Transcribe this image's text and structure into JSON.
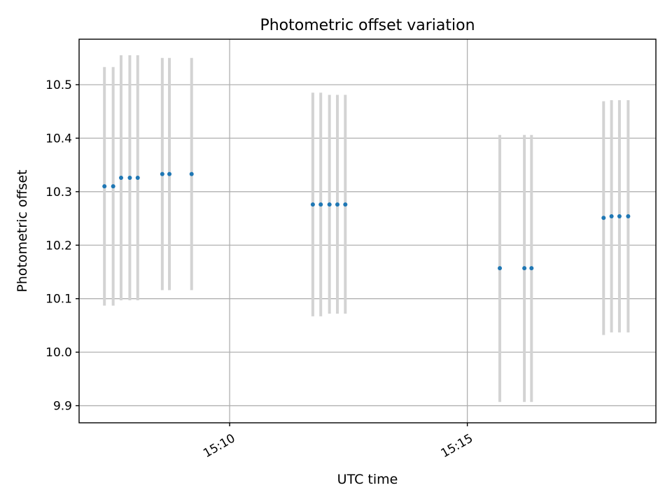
{
  "chart_data": {
    "type": "scatter",
    "title": "Photometric offset variation",
    "xlabel": "UTC time",
    "ylabel": "Photometric offset",
    "xaxis_type": "time",
    "xlim": [
      "15:06:50",
      "15:18:58"
    ],
    "ylim": [
      9.868,
      10.585
    ],
    "yticks": [
      9.9,
      10.0,
      10.1,
      10.2,
      10.3,
      10.4,
      10.5
    ],
    "ytick_labels": [
      "9.9",
      "10.0",
      "10.1",
      "10.2",
      "10.3",
      "10.4",
      "10.5"
    ],
    "xticks": [
      "15:10",
      "15:15"
    ],
    "xtick_labels": [
      "15:10",
      "15:15"
    ],
    "grid": true,
    "series": [
      {
        "color": "#1f77b4",
        "errorbar_color": "#d3d3d3",
        "points": [
          {
            "t": "15:07:22",
            "y": 10.31,
            "ylo": 10.087,
            "yhi": 10.533
          },
          {
            "t": "15:07:33",
            "y": 10.31,
            "ylo": 10.087,
            "yhi": 10.533
          },
          {
            "t": "15:07:43",
            "y": 10.326,
            "ylo": 10.097,
            "yhi": 10.555
          },
          {
            "t": "15:07:54",
            "y": 10.326,
            "ylo": 10.097,
            "yhi": 10.555
          },
          {
            "t": "15:08:04",
            "y": 10.326,
            "ylo": 10.097,
            "yhi": 10.555
          },
          {
            "t": "15:08:35",
            "y": 10.333,
            "ylo": 10.116,
            "yhi": 10.55
          },
          {
            "t": "15:08:44",
            "y": 10.333,
            "ylo": 10.116,
            "yhi": 10.55
          },
          {
            "t": "15:09:12",
            "y": 10.333,
            "ylo": 10.116,
            "yhi": 10.55
          },
          {
            "t": "15:11:45",
            "y": 10.276,
            "ylo": 10.067,
            "yhi": 10.485
          },
          {
            "t": "15:11:55",
            "y": 10.276,
            "ylo": 10.067,
            "yhi": 10.485
          },
          {
            "t": "15:12:06",
            "y": 10.276,
            "ylo": 10.072,
            "yhi": 10.481
          },
          {
            "t": "15:12:16",
            "y": 10.276,
            "ylo": 10.072,
            "yhi": 10.481
          },
          {
            "t": "15:12:26",
            "y": 10.276,
            "ylo": 10.072,
            "yhi": 10.481
          },
          {
            "t": "15:15:41",
            "y": 10.157,
            "ylo": 9.907,
            "yhi": 10.406
          },
          {
            "t": "15:16:12",
            "y": 10.157,
            "ylo": 9.907,
            "yhi": 10.406
          },
          {
            "t": "15:16:21",
            "y": 10.157,
            "ylo": 9.907,
            "yhi": 10.406
          },
          {
            "t": "15:17:52",
            "y": 10.251,
            "ylo": 10.032,
            "yhi": 10.469
          },
          {
            "t": "15:18:02",
            "y": 10.254,
            "ylo": 10.037,
            "yhi": 10.471
          },
          {
            "t": "15:18:12",
            "y": 10.254,
            "ylo": 10.037,
            "yhi": 10.471
          },
          {
            "t": "15:18:23",
            "y": 10.254,
            "ylo": 10.037,
            "yhi": 10.471
          }
        ]
      }
    ]
  }
}
